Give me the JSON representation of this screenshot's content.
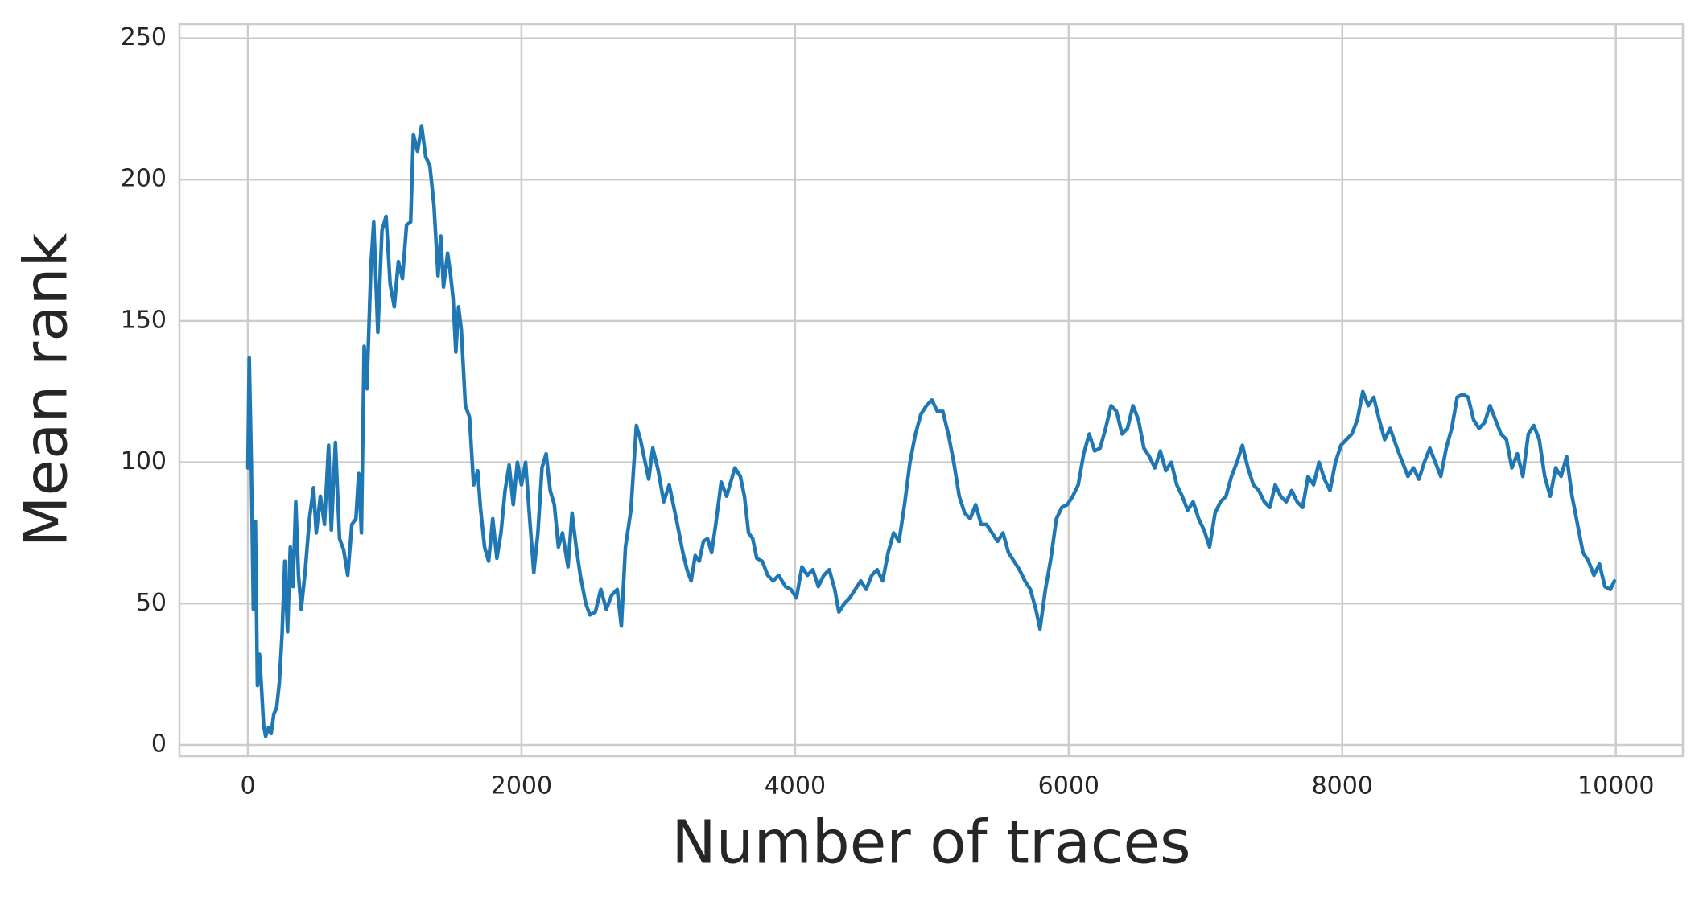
{
  "chart_data": {
    "type": "line",
    "xlabel": "Number of traces",
    "ylabel": "Mean rank",
    "xlim": [
      -500,
      10490
    ],
    "ylim": [
      -4,
      255
    ],
    "xticks": [
      0,
      2000,
      4000,
      6000,
      8000,
      10000
    ],
    "yticks": [
      0,
      50,
      100,
      150,
      200,
      250
    ],
    "grid": true,
    "x": [
      0,
      10,
      25,
      40,
      55,
      70,
      85,
      100,
      115,
      130,
      150,
      170,
      190,
      210,
      230,
      250,
      270,
      290,
      310,
      330,
      350,
      370,
      390,
      420,
      450,
      480,
      500,
      530,
      560,
      590,
      610,
      640,
      670,
      700,
      730,
      760,
      790,
      810,
      830,
      850,
      870,
      900,
      920,
      950,
      980,
      1010,
      1040,
      1070,
      1100,
      1130,
      1160,
      1190,
      1210,
      1240,
      1270,
      1300,
      1330,
      1360,
      1390,
      1410,
      1430,
      1460,
      1480,
      1500,
      1520,
      1540,
      1560,
      1590,
      1620,
      1650,
      1680,
      1700,
      1730,
      1760,
      1790,
      1820,
      1850,
      1880,
      1910,
      1940,
      1970,
      2000,
      2030,
      2060,
      2090,
      2120,
      2150,
      2180,
      2210,
      2240,
      2270,
      2300,
      2340,
      2370,
      2400,
      2430,
      2470,
      2500,
      2540,
      2580,
      2620,
      2660,
      2700,
      2730,
      2760,
      2800,
      2840,
      2870,
      2900,
      2930,
      2960,
      3000,
      3040,
      3080,
      3110,
      3140,
      3180,
      3210,
      3240,
      3270,
      3300,
      3330,
      3360,
      3390,
      3420,
      3460,
      3500,
      3530,
      3560,
      3600,
      3630,
      3660,
      3690,
      3720,
      3760,
      3800,
      3840,
      3880,
      3930,
      3970,
      4010,
      4050,
      4090,
      4130,
      4170,
      4210,
      4250,
      4290,
      4320,
      4360,
      4400,
      4440,
      4480,
      4520,
      4560,
      4600,
      4640,
      4680,
      4720,
      4760,
      4800,
      4840,
      4880,
      4920,
      4960,
      5000,
      5040,
      5080,
      5120,
      5160,
      5200,
      5240,
      5280,
      5320,
      5360,
      5400,
      5440,
      5480,
      5520,
      5560,
      5600,
      5640,
      5680,
      5720,
      5760,
      5790,
      5830,
      5870,
      5910,
      5950,
      5990,
      6030,
      6070,
      6110,
      6150,
      6190,
      6230,
      6270,
      6310,
      6350,
      6390,
      6430,
      6470,
      6510,
      6550,
      6590,
      6630,
      6670,
      6710,
      6750,
      6790,
      6830,
      6870,
      6910,
      6950,
      6990,
      7030,
      7070,
      7110,
      7150,
      7190,
      7230,
      7270,
      7310,
      7350,
      7390,
      7430,
      7470,
      7510,
      7550,
      7590,
      7630,
      7670,
      7710,
      7750,
      7790,
      7830,
      7870,
      7910,
      7950,
      7990,
      8030,
      8070,
      8110,
      8150,
      8190,
      8230,
      8270,
      8310,
      8350,
      8400,
      8440,
      8480,
      8520,
      8560,
      8600,
      8640,
      8680,
      8720,
      8760,
      8800,
      8840,
      8880,
      8920,
      8960,
      9000,
      9040,
      9080,
      9120,
      9160,
      9200,
      9240,
      9280,
      9320,
      9360,
      9400,
      9440,
      9480,
      9520,
      9560,
      9600,
      9640,
      9680,
      9720,
      9760,
      9800,
      9840,
      9880,
      9920,
      9960,
      9990
    ],
    "series": [
      {
        "color": "#1f77b4",
        "values": [
          98,
          137,
          100,
          48,
          79,
          21,
          32,
          20,
          7,
          3,
          6,
          4,
          11,
          13,
          22,
          39,
          65,
          40,
          70,
          56,
          86,
          60,
          48,
          62,
          80,
          91,
          75,
          88,
          78,
          106,
          76,
          107,
          73,
          69,
          60,
          78,
          80,
          96,
          75,
          141,
          126,
          170,
          185,
          146,
          182,
          187,
          163,
          155,
          171,
          165,
          184,
          185,
          216,
          210,
          219,
          208,
          205,
          191,
          166,
          180,
          162,
          174,
          167,
          158,
          139,
          155,
          147,
          120,
          116,
          92,
          97,
          84,
          70,
          65,
          80,
          66,
          75,
          90,
          99,
          85,
          100,
          92,
          100,
          80,
          61,
          75,
          98,
          103,
          90,
          85,
          70,
          75,
          63,
          82,
          70,
          60,
          50,
          46,
          47,
          55,
          48,
          53,
          55,
          42,
          70,
          83,
          113,
          108,
          101,
          94,
          105,
          97,
          86,
          92,
          85,
          78,
          68,
          62,
          58,
          67,
          65,
          72,
          73,
          68,
          78,
          93,
          88,
          93,
          98,
          95,
          88,
          75,
          73,
          66,
          65,
          60,
          58,
          60,
          56,
          55,
          52,
          63,
          60,
          62,
          56,
          60,
          62,
          55,
          47,
          50,
          52,
          55,
          58,
          55,
          60,
          62,
          58,
          68,
          75,
          72,
          85,
          100,
          110,
          117,
          120,
          122,
          118,
          118,
          110,
          100,
          88,
          82,
          80,
          85,
          78,
          78,
          75,
          72,
          75,
          68,
          65,
          62,
          58,
          55,
          48,
          41,
          55,
          66,
          80,
          84,
          85,
          88,
          92,
          103,
          110,
          104,
          105,
          112,
          120,
          118,
          110,
          112,
          120,
          115,
          105,
          102,
          98,
          104,
          97,
          100,
          92,
          88,
          83,
          86,
          80,
          76,
          70,
          82,
          86,
          88,
          95,
          100,
          106,
          98,
          92,
          90,
          86,
          84,
          92,
          88,
          86,
          90,
          86,
          84,
          95,
          92,
          100,
          94,
          90,
          100,
          106,
          108,
          110,
          115,
          125,
          120,
          123,
          115,
          108,
          112,
          105,
          100,
          95,
          98,
          94,
          100,
          105,
          100,
          95,
          105,
          112,
          123,
          124,
          123,
          115,
          112,
          114,
          120,
          115,
          110,
          108,
          98,
          103,
          95,
          110,
          113,
          108,
          95,
          88,
          98,
          95,
          102,
          88,
          78,
          68,
          65,
          60,
          64,
          56,
          55,
          58
        ]
      }
    ]
  }
}
